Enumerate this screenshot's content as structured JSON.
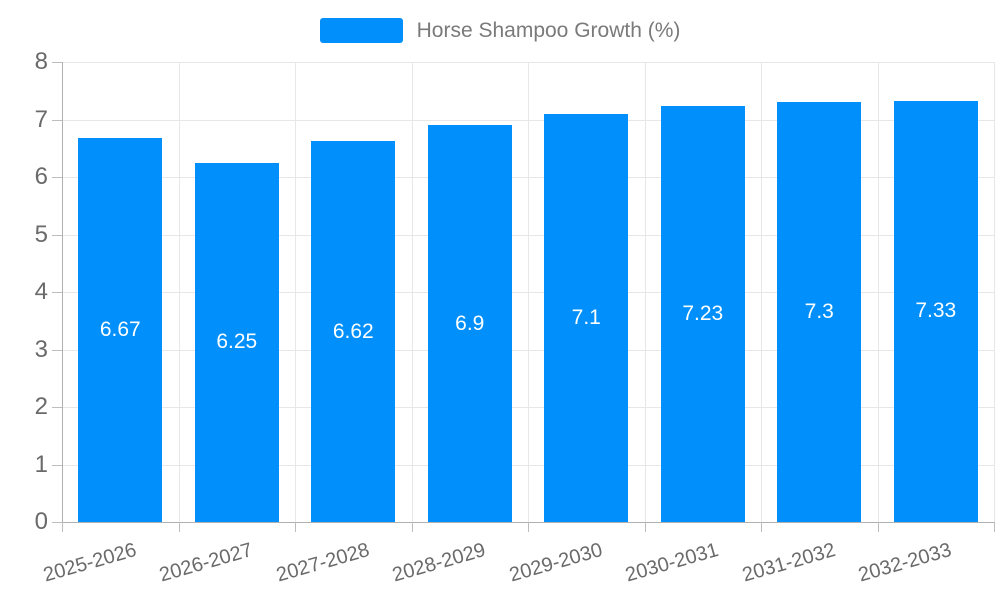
{
  "chart_data": {
    "type": "bar",
    "title": "Horse Shampoo Growth (%)",
    "categories": [
      "2025-2026",
      "2026-2027",
      "2027-2028",
      "2028-2029",
      "2029-2030",
      "2030-2031",
      "2031-2032",
      "2032-2033"
    ],
    "values": [
      6.67,
      6.25,
      6.62,
      6.9,
      7.1,
      7.23,
      7.3,
      7.33
    ],
    "value_labels": [
      "6.67",
      "6.25",
      "6.62",
      "6.9",
      "7.1",
      "7.23",
      "7.3",
      "7.33"
    ],
    "xlabel": "",
    "ylabel": "",
    "ylim": [
      0,
      8
    ],
    "ytick_step": 1,
    "ytick_labels": [
      "0",
      "1",
      "2",
      "3",
      "4",
      "5",
      "6",
      "7",
      "8"
    ],
    "grid": true,
    "legend_position": "top",
    "colors": {
      "bar": "#008FFB",
      "bar_label": "#ffffff",
      "grid": "#e7e7e7",
      "axis": "#b0b0b0",
      "tick": "#bdbdbd",
      "axis_label": "#6a6a6a",
      "legend_text": "#7a7a7a"
    }
  },
  "legend": {
    "label": "Horse Shampoo Growth (%)"
  }
}
